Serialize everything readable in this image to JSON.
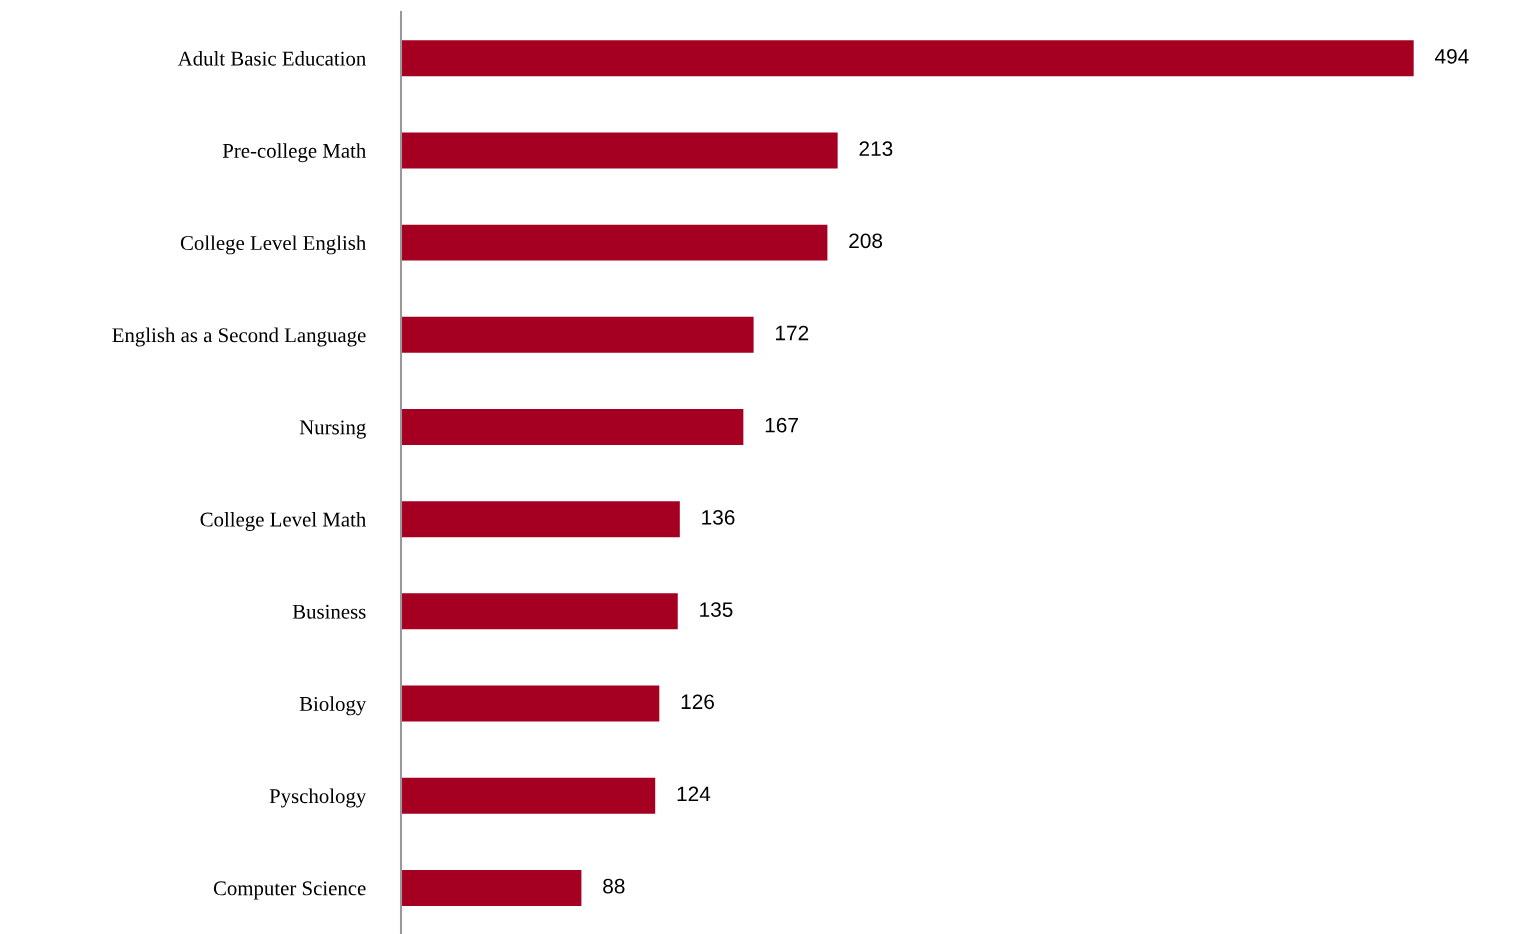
{
  "chart_data": {
    "type": "bar",
    "orientation": "horizontal",
    "categories": [
      "Adult Basic Education",
      "Pre-college Math",
      "College Level English",
      "English as a Second Language",
      "Nursing",
      "College Level Math",
      "Business",
      "Biology",
      "Pyschology",
      "Computer Science"
    ],
    "values": [
      494,
      213,
      208,
      172,
      167,
      136,
      135,
      126,
      124,
      88
    ],
    "color": "#a50021",
    "data_labels": true,
    "grid": false,
    "legend": false
  }
}
